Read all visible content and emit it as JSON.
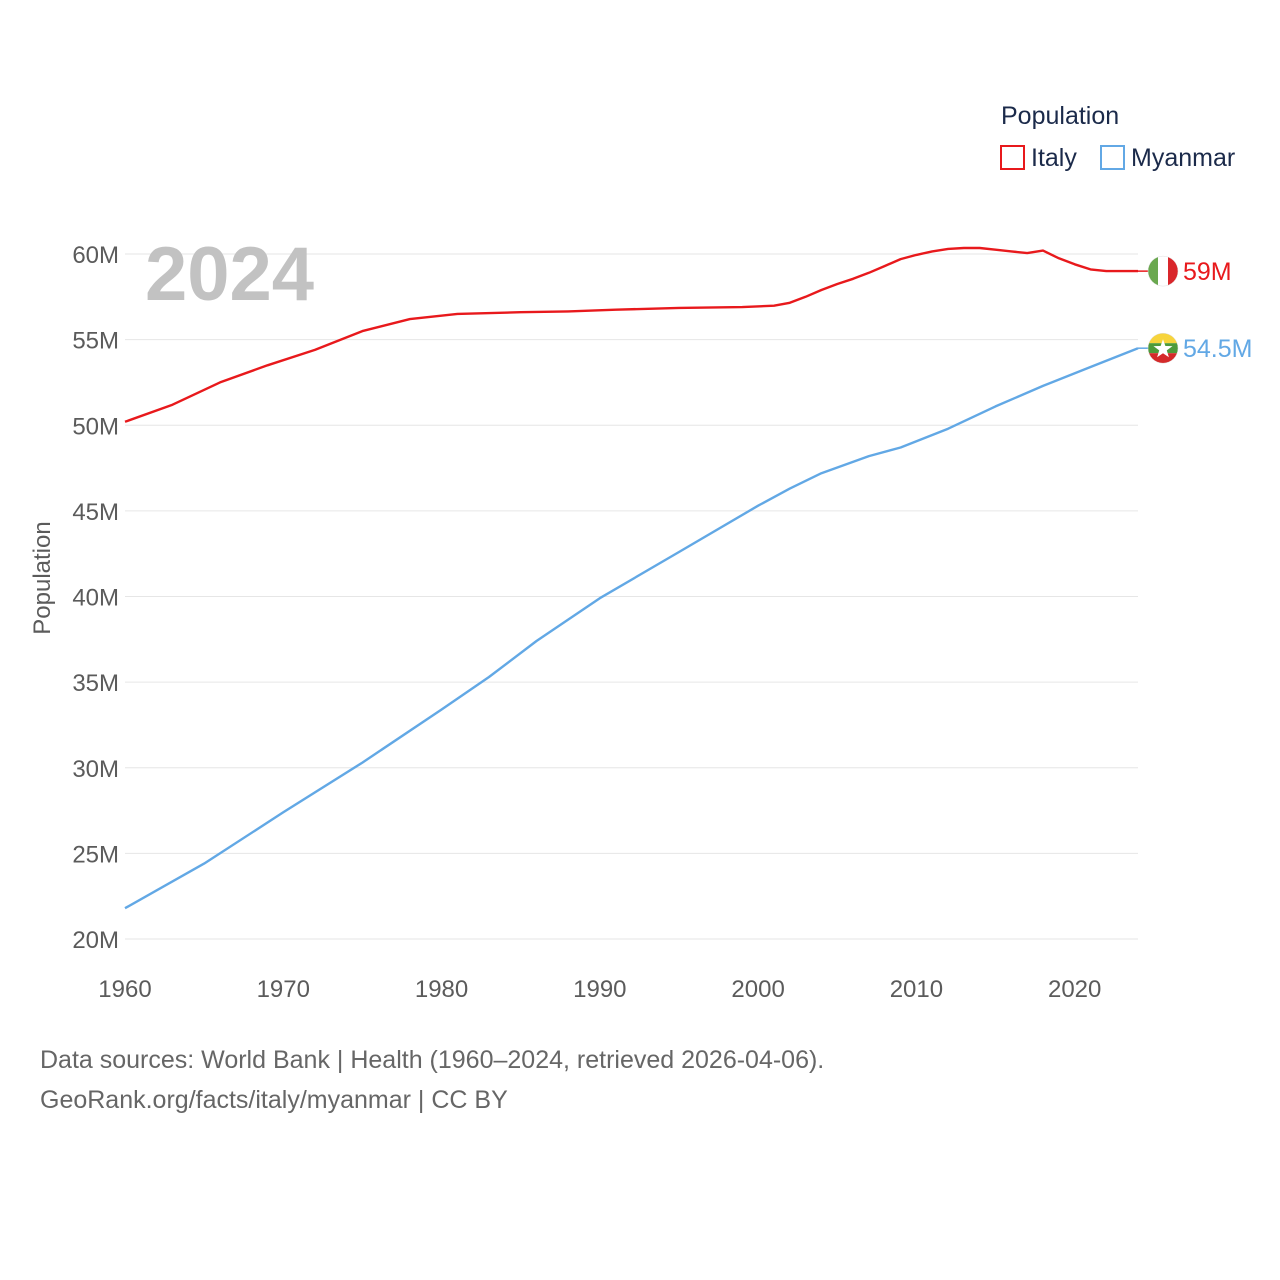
{
  "chart_data": {
    "type": "line",
    "current_year": "2024",
    "ylabel": "Population",
    "legend_title": "Population",
    "ylim": [
      20000000,
      62000000
    ],
    "xlim": [
      1960,
      2024
    ],
    "y_ticks": [
      {
        "value": 20000000,
        "label": "20M"
      },
      {
        "value": 25000000,
        "label": "25M"
      },
      {
        "value": 30000000,
        "label": "30M"
      },
      {
        "value": 35000000,
        "label": "35M"
      },
      {
        "value": 40000000,
        "label": "40M"
      },
      {
        "value": 45000000,
        "label": "45M"
      },
      {
        "value": 50000000,
        "label": "50M"
      },
      {
        "value": 55000000,
        "label": "55M"
      },
      {
        "value": 60000000,
        "label": "60M"
      }
    ],
    "x_ticks": [
      {
        "value": 1960,
        "label": "1960"
      },
      {
        "value": 1970,
        "label": "1970"
      },
      {
        "value": 1980,
        "label": "1980"
      },
      {
        "value": 1990,
        "label": "1990"
      },
      {
        "value": 2000,
        "label": "2000"
      },
      {
        "value": 2010,
        "label": "2010"
      },
      {
        "value": 2020,
        "label": "2020"
      }
    ],
    "series": [
      {
        "name": "Italy",
        "color": "#e8191c",
        "end_label": "59M",
        "flag": "italy-flag",
        "points": [
          [
            1960,
            50200000
          ],
          [
            1963,
            51200000
          ],
          [
            1966,
            52500000
          ],
          [
            1969,
            53500000
          ],
          [
            1972,
            54400000
          ],
          [
            1975,
            55500000
          ],
          [
            1978,
            56200000
          ],
          [
            1981,
            56500000
          ],
          [
            1985,
            56600000
          ],
          [
            1988,
            56650000
          ],
          [
            1991,
            56750000
          ],
          [
            1995,
            56850000
          ],
          [
            1999,
            56900000
          ],
          [
            2001,
            56980000
          ],
          [
            2002,
            57150000
          ],
          [
            2003,
            57500000
          ],
          [
            2004,
            57900000
          ],
          [
            2005,
            58250000
          ],
          [
            2006,
            58550000
          ],
          [
            2007,
            58900000
          ],
          [
            2008,
            59300000
          ],
          [
            2009,
            59700000
          ],
          [
            2010,
            59950000
          ],
          [
            2011,
            60150000
          ],
          [
            2012,
            60300000
          ],
          [
            2013,
            60350000
          ],
          [
            2014,
            60350000
          ],
          [
            2015,
            60250000
          ],
          [
            2016,
            60150000
          ],
          [
            2017,
            60050000
          ],
          [
            2018,
            60200000
          ],
          [
            2019,
            59750000
          ],
          [
            2020,
            59400000
          ],
          [
            2021,
            59100000
          ],
          [
            2022,
            59000000
          ],
          [
            2023,
            59000000
          ],
          [
            2024,
            59000000
          ]
        ]
      },
      {
        "name": "Myanmar",
        "color": "#62a8e5",
        "end_label": "54.5M",
        "flag": "myanmar-flag",
        "points": [
          [
            1960,
            21800000
          ],
          [
            1965,
            24400000
          ],
          [
            1970,
            27400000
          ],
          [
            1975,
            30300000
          ],
          [
            1980,
            33400000
          ],
          [
            1983,
            35300000
          ],
          [
            1986,
            37400000
          ],
          [
            1990,
            39900000
          ],
          [
            1995,
            42600000
          ],
          [
            2000,
            45300000
          ],
          [
            2002,
            46300000
          ],
          [
            2004,
            47200000
          ],
          [
            2007,
            48200000
          ],
          [
            2009,
            48700000
          ],
          [
            2012,
            49800000
          ],
          [
            2015,
            51100000
          ],
          [
            2018,
            52300000
          ],
          [
            2021,
            53400000
          ],
          [
            2024,
            54500000
          ]
        ]
      }
    ]
  },
  "footer": {
    "line1": "Data sources: World Bank | Health (1960–2024, retrieved 2026-04-06).",
    "line2": "GeoRank.org/facts/italy/myanmar | CC BY"
  }
}
